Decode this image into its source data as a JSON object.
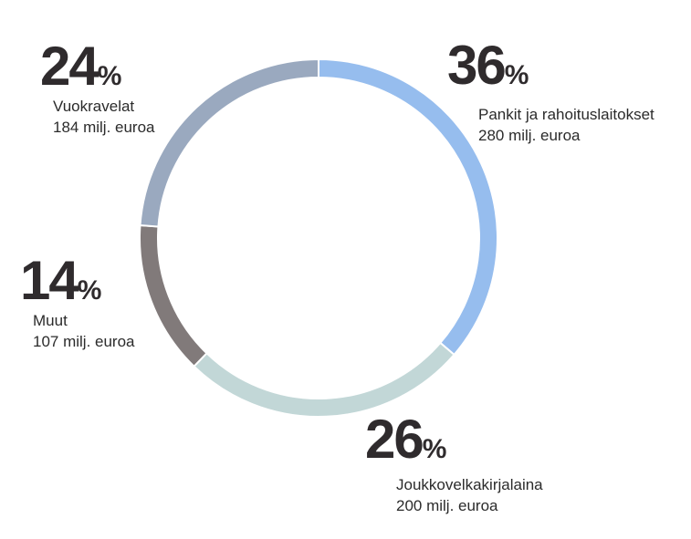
{
  "chart_data": {
    "type": "pie",
    "style": "donut",
    "categories": [
      "Pankit ja rahoituslaitokset",
      "Joukkovelkakirjalaina",
      "Muut",
      "Vuokravelat"
    ],
    "values": [
      280,
      200,
      107,
      184
    ],
    "value_labels": [
      "280 milj. euroa",
      "200 milj. euroa",
      "107 milj. euroa",
      "184 milj. euroa"
    ],
    "percents": [
      "36",
      "26",
      "14",
      "24"
    ],
    "percent_sign": "%",
    "colors": [
      "#96bdee",
      "#c2d7d7",
      "#817a7a",
      "#9aa9bf"
    ],
    "start_angle_deg": 0,
    "direction": "clockwise",
    "legend": "none",
    "title": ""
  }
}
